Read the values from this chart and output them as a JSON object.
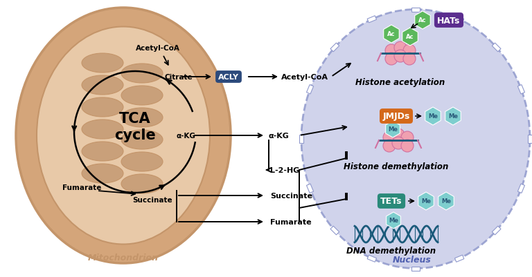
{
  "bg_color": "#ffffff",
  "mito_outer_color": "#d4a57a",
  "mito_outer_edge": "#c4956a",
  "mito_inner_color": "#e8c9a8",
  "mito_cristae_color": "#c9a07a",
  "nucleus_fill": "#c8cce8",
  "nucleus_edge": "#9099cc",
  "tca_text": "TCA\ncycle",
  "mito_label": "Mitochondrion",
  "nucleus_label": "Nucleus",
  "acly_label": "ACLY",
  "acly_bg": "#2c4a7c",
  "acly_text_color": "#ffffff",
  "hats_label": "HATs",
  "hats_bg": "#5b2d8e",
  "hats_text_color": "#ffffff",
  "jmjds_label": "JMJDs",
  "jmjds_bg": "#d4681a",
  "jmjds_text_color": "#ffffff",
  "tets_label": "TETs",
  "tets_bg": "#2a8a7a",
  "tets_text_color": "#ffffff",
  "ac_color": "#5cb85c",
  "me_color": "#7ecece",
  "histone_color": "#f0a0b0",
  "histone_edge": "#d070a0",
  "dna_color": "#1a5a7a",
  "histone_acetylation_label": "Histone acetylation",
  "histone_demethylation_label": "Histone demethylation",
  "dna_demethylation_label": "DNA demethylation",
  "mito_label_color": "#c4956a",
  "nucleus_label_color": "#5060b0",
  "alpha_kg": "α-KG",
  "metabolites_middle": [
    "α-KG",
    "L-2-HG",
    "Succinate",
    "Fumarate"
  ]
}
